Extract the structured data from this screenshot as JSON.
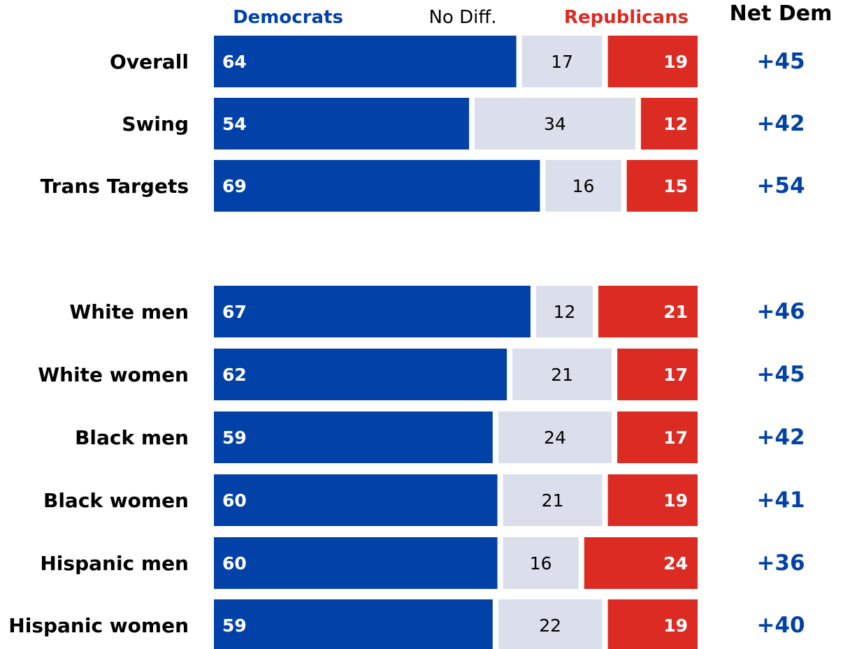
{
  "chart_data": {
    "type": "bar",
    "orientation": "horizontal",
    "stacked": true,
    "legend": {
      "position": "top",
      "entries": [
        "Democrats",
        "No Diff.",
        "Republicans"
      ]
    },
    "net_header": "Net Dem",
    "colors": {
      "Democrats": "#0242a8",
      "No Diff.": "#dadfeb",
      "Republicans": "#dc2b23",
      "net": "#0242a8",
      "category_text": "#000000"
    },
    "groups": [
      [
        "Overall",
        "Swing",
        "Trans Targets"
      ],
      [
        "White men",
        "White women",
        "Black men",
        "Black women",
        "Hispanic men",
        "Hispanic women"
      ]
    ],
    "categories": [
      "Overall",
      "Swing",
      "Trans Targets",
      "White men",
      "White women",
      "Black men",
      "Black women",
      "Hispanic men",
      "Hispanic women"
    ],
    "series": [
      {
        "name": "Democrats",
        "values": [
          64,
          54,
          69,
          67,
          62,
          59,
          60,
          60,
          59
        ]
      },
      {
        "name": "No Diff.",
        "values": [
          17,
          34,
          16,
          12,
          21,
          24,
          21,
          16,
          22
        ]
      },
      {
        "name": "Republicans",
        "values": [
          19,
          12,
          15,
          21,
          17,
          17,
          19,
          24,
          19
        ]
      }
    ],
    "net_dem": [
      "+45",
      "+42",
      "+54",
      "+46",
      "+45",
      "+42",
      "+41",
      "+36",
      "+40"
    ],
    "xlim": [
      0,
      100
    ],
    "grid": false
  }
}
